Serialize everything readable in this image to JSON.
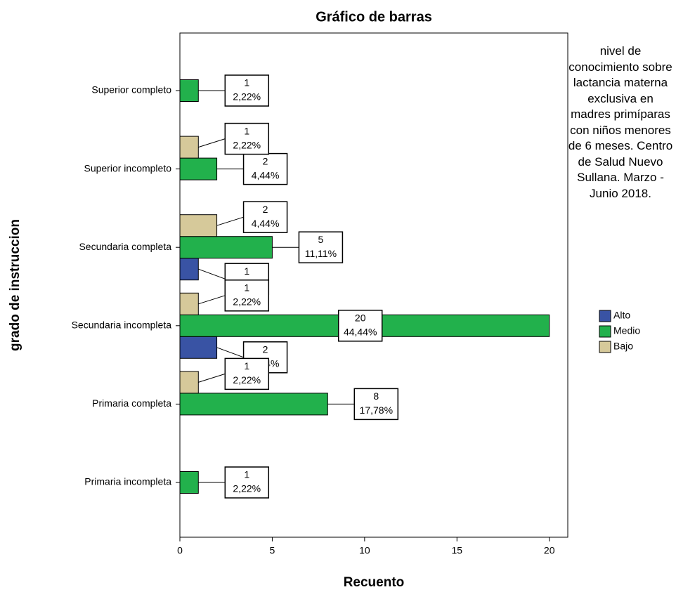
{
  "chart_data": {
    "type": "bar",
    "orientation": "horizontal",
    "title": "Gráfico de barras",
    "x_label": "Recuento",
    "y_label": "grado de instruccion",
    "legend_title": "nivel de conocimiento sobre lactancia materna exclusiva en madres primíparas con niños menores de 6 meses. Centro de Salud Nuevo Sullana. Marzo - Junio 2018.",
    "legend_position": "right",
    "categories": [
      "Superior completo",
      "Superior incompleto",
      "Secundaria completa",
      "Secundaria incompleta",
      "Primaria completa",
      "Primaria incompleta"
    ],
    "series": [
      {
        "name": "Alto",
        "color": "#3953a4",
        "values": [
          null,
          null,
          1,
          2,
          null,
          null
        ],
        "percent_labels": [
          null,
          null,
          "2,22%",
          "4,44%",
          null,
          null
        ]
      },
      {
        "name": "Medio",
        "color": "#22b14c",
        "values": [
          1,
          2,
          5,
          20,
          8,
          1
        ],
        "percent_labels": [
          "2,22%",
          "4,44%",
          "11,11%",
          "44,44%",
          "17,78%",
          "2,22%"
        ]
      },
      {
        "name": "Bajo",
        "color": "#d6c99a",
        "values": [
          null,
          1,
          2,
          1,
          1,
          null
        ],
        "percent_labels": [
          null,
          "2,22%",
          "4,44%",
          "2,22%",
          "2,22%",
          null
        ]
      }
    ],
    "xlim": [
      0,
      21
    ],
    "xticks": [
      0,
      5,
      10,
      15,
      20
    ],
    "grid": false
  }
}
